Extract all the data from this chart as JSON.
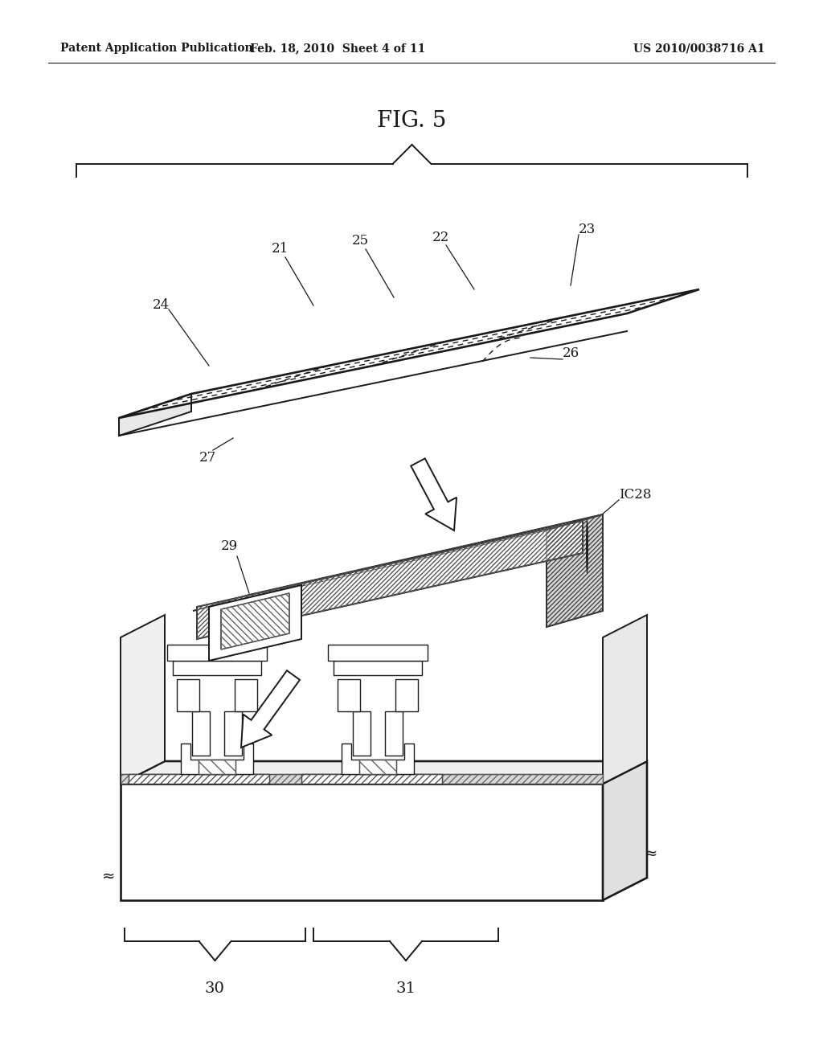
{
  "title": "FIG. 5",
  "header_left": "Patent Application Publication",
  "header_mid": "Feb. 18, 2010  Sheet 4 of 11",
  "header_right": "US 2010/0038716 A1",
  "bg_color": "#ffffff",
  "lc": "#1a1a1a",
  "lw": 1.4,
  "lw_thin": 1.0,
  "fs_label": 12,
  "fs_header": 10,
  "fs_title": 20
}
